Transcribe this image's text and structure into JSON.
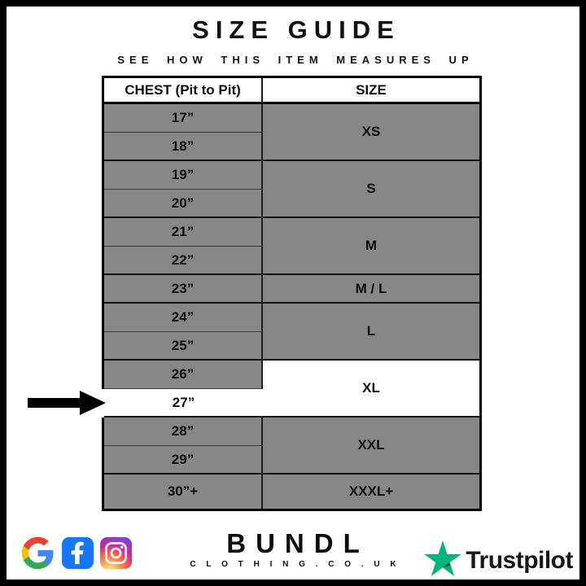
{
  "title": "SIZE GUIDE",
  "subtitle": "SEE HOW THIS ITEM MEASURES UP",
  "table": {
    "headers": [
      "CHEST (Pit to Pit)",
      "SIZE"
    ],
    "groups": [
      {
        "size": "XS",
        "chest": [
          "17”",
          "18”"
        ]
      },
      {
        "size": "S",
        "chest": [
          "19”",
          "20”"
        ]
      },
      {
        "size": "M",
        "chest": [
          "21”",
          "22”"
        ]
      },
      {
        "size": "M / L",
        "chest": [
          "23”"
        ]
      },
      {
        "size": "L",
        "chest": [
          "24”",
          "25”"
        ]
      },
      {
        "size": "XL",
        "chest": [
          "26”",
          "27”"
        ],
        "highlighted": true
      },
      {
        "size": "XXL",
        "chest": [
          "28”",
          "29”"
        ]
      },
      {
        "size": "XXXL+",
        "chest": [
          "30”+"
        ]
      }
    ],
    "highlight": {
      "chest": "27”",
      "size": "XL"
    }
  },
  "footer": {
    "brand": "BUNDL",
    "brand_sub": "C L O T H I N G . C O . U K",
    "trustpilot_label": "Trustpilot",
    "icons": [
      "google-icon",
      "facebook-icon",
      "instagram-icon",
      "trustpilot-star-icon"
    ]
  },
  "colors": {
    "row_gray": "#878787",
    "highlight_white": "#ffffff",
    "border_black": "#000000",
    "facebook_blue": "#1877F2",
    "trustpilot_green": "#00B67A",
    "trustpilot_dark": "#005128",
    "google_blue": "#4285F4",
    "google_red": "#EA4335",
    "google_yellow": "#FBBC05",
    "google_green": "#34A853"
  }
}
